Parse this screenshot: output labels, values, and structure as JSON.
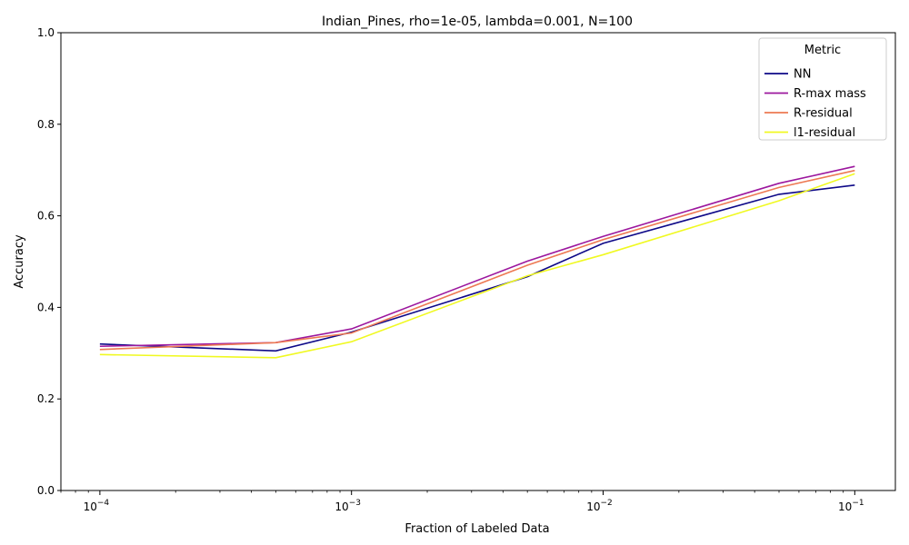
{
  "chart_data": {
    "type": "line",
    "title": "Indian_Pines, rho=1e-05, lambda=0.001, N=100",
    "xlabel": "Fraction of Labeled Data",
    "ylabel": "Accuracy",
    "xscale": "log",
    "x": [
      0.0001,
      0.0005,
      0.001,
      0.005,
      0.01,
      0.05,
      0.1
    ],
    "xlim": [
      7e-05,
      0.145
    ],
    "ylim": [
      0,
      1
    ],
    "yticks": [
      "0.0",
      "0.2",
      "0.4",
      "0.6",
      "0.8",
      "1.0"
    ],
    "xticks": [
      {
        "value": 0.0001,
        "base": "10",
        "exp": "−4"
      },
      {
        "value": 0.001,
        "base": "10",
        "exp": "−3"
      },
      {
        "value": 0.01,
        "base": "10",
        "exp": "−2"
      },
      {
        "value": 0.1,
        "base": "10",
        "exp": "−1"
      }
    ],
    "grid": false,
    "legend": {
      "title": "Metric",
      "placement": "top-right"
    },
    "series": [
      {
        "name": "NN",
        "color": "#0d0887",
        "values": [
          0.32,
          0.305,
          0.346,
          0.467,
          0.54,
          0.647,
          0.667
        ]
      },
      {
        "name": "R-max mass",
        "color": "#9c179e",
        "values": [
          0.315,
          0.323,
          0.353,
          0.501,
          0.555,
          0.671,
          0.708
        ]
      },
      {
        "name": "R-residual",
        "color": "#ed7953",
        "values": [
          0.308,
          0.323,
          0.344,
          0.492,
          0.548,
          0.662,
          0.699
        ]
      },
      {
        "name": "l1-residual",
        "color": "#f0f921",
        "values": [
          0.297,
          0.29,
          0.325,
          0.469,
          0.515,
          0.633,
          0.692
        ]
      }
    ]
  }
}
